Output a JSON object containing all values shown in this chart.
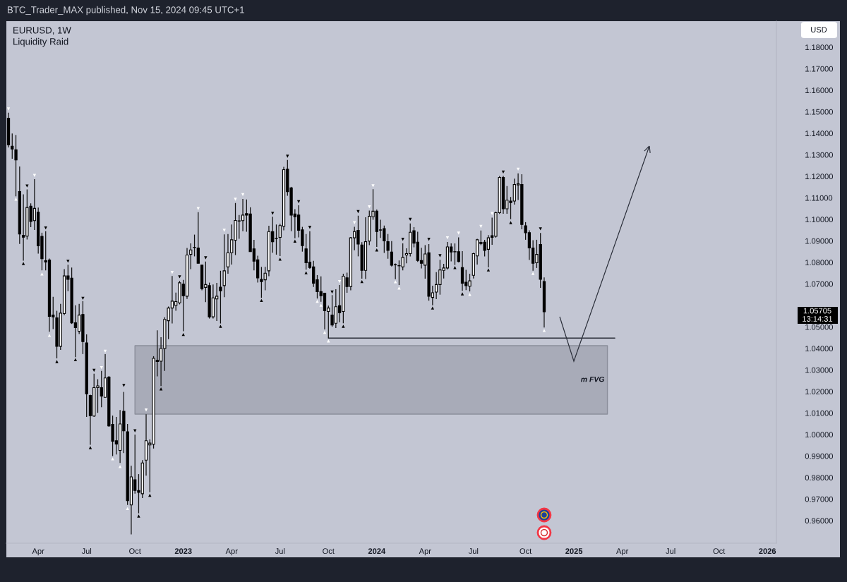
{
  "chart_data": {
    "type": "candlestick",
    "title": "EURUSD, 1W",
    "subtitle": "Liquidity Raid",
    "ylabel": "USD",
    "x": [
      "2022-02-07",
      "2022-02-14",
      "2022-02-21",
      "2022-02-28",
      "2022-03-07",
      "2022-03-14",
      "2022-03-21",
      "2022-03-28",
      "2022-04-04",
      "2022-04-11",
      "2022-04-18",
      "2022-04-25",
      "2022-05-02",
      "2022-05-09",
      "2022-05-16",
      "2022-05-23",
      "2022-05-30",
      "2022-06-06",
      "2022-06-13",
      "2022-06-20",
      "2022-06-27",
      "2022-07-04",
      "2022-07-11",
      "2022-07-18",
      "2022-07-25",
      "2022-08-01",
      "2022-08-08",
      "2022-08-15",
      "2022-08-22",
      "2022-08-29",
      "2022-09-05",
      "2022-09-12",
      "2022-09-19",
      "2022-09-26",
      "2022-10-03",
      "2022-10-10",
      "2022-10-17",
      "2022-10-24",
      "2022-10-31",
      "2022-11-07",
      "2022-11-14",
      "2022-11-21",
      "2022-11-28",
      "2022-12-05",
      "2022-12-12",
      "2022-12-19",
      "2022-12-26",
      "2023-01-02",
      "2023-01-09",
      "2023-01-16",
      "2023-01-23",
      "2023-01-30",
      "2023-02-06",
      "2023-02-13",
      "2023-02-20",
      "2023-02-27",
      "2023-03-06",
      "2023-03-13",
      "2023-03-20",
      "2023-03-27",
      "2023-04-03",
      "2023-04-10",
      "2023-04-17",
      "2023-04-24",
      "2023-05-01",
      "2023-05-08",
      "2023-05-15",
      "2023-05-22",
      "2023-05-29",
      "2023-06-05",
      "2023-06-12",
      "2023-06-19",
      "2023-06-26",
      "2023-07-03",
      "2023-07-10",
      "2023-07-17",
      "2023-07-24",
      "2023-07-31",
      "2023-08-07",
      "2023-08-14",
      "2023-08-21",
      "2023-08-28",
      "2023-09-04",
      "2023-09-11",
      "2023-09-18",
      "2023-09-25",
      "2023-10-02",
      "2023-10-09",
      "2023-10-16",
      "2023-10-23",
      "2023-10-30",
      "2023-11-06",
      "2023-11-13",
      "2023-11-20",
      "2023-11-27",
      "2023-12-04",
      "2023-12-11",
      "2023-12-18",
      "2023-12-25",
      "2024-01-01",
      "2024-01-08",
      "2024-01-15",
      "2024-01-22",
      "2024-01-29",
      "2024-02-05",
      "2024-02-12",
      "2024-02-19",
      "2024-02-26",
      "2024-03-04",
      "2024-03-11",
      "2024-03-18",
      "2024-03-25",
      "2024-04-01",
      "2024-04-08",
      "2024-04-15",
      "2024-04-22",
      "2024-04-29",
      "2024-05-06",
      "2024-05-13",
      "2024-05-20",
      "2024-05-27",
      "2024-06-03",
      "2024-06-10",
      "2024-06-17",
      "2024-06-24",
      "2024-07-01",
      "2024-07-08",
      "2024-07-15",
      "2024-07-22",
      "2024-07-29",
      "2024-08-05",
      "2024-08-12",
      "2024-08-19",
      "2024-08-26",
      "2024-09-02",
      "2024-09-09",
      "2024-09-16",
      "2024-09-23",
      "2024-09-30",
      "2024-10-07",
      "2024-10-14",
      "2024-10-21",
      "2024-10-28",
      "2024-11-04",
      "2024-11-11"
    ],
    "ohlc": [
      [
        1.147,
        1.1496,
        1.1334,
        1.1347
      ],
      [
        1.134,
        1.1399,
        1.1282,
        1.1327
      ],
      [
        1.1323,
        1.1392,
        1.1107,
        1.1276
      ],
      [
        1.1129,
        1.1246,
        1.0886,
        1.0932
      ],
      [
        1.0926,
        1.1116,
        1.0808,
        1.0917
      ],
      [
        1.0922,
        1.1139,
        1.0906,
        1.1055
      ],
      [
        1.1061,
        1.1074,
        1.0964,
        1.099
      ],
      [
        1.0994,
        1.1187,
        1.0951,
        1.1051
      ],
      [
        1.1033,
        1.1055,
        1.0841,
        1.0877
      ],
      [
        1.0921,
        1.0938,
        1.0763,
        1.0817
      ],
      [
        1.0808,
        1.0945,
        1.0763,
        1.0802
      ],
      [
        1.0811,
        1.0818,
        1.0478,
        1.0549
      ],
      [
        1.0555,
        1.064,
        1.049,
        1.0547
      ],
      [
        1.0542,
        1.0575,
        1.0354,
        1.041
      ],
      [
        1.041,
        1.0607,
        1.0393,
        1.0564
      ],
      [
        1.0562,
        1.0769,
        1.0555,
        1.0737
      ],
      [
        1.0737,
        1.0789,
        1.0666,
        1.0721
      ],
      [
        1.0727,
        1.0776,
        1.0514,
        1.0519
      ],
      [
        1.0519,
        1.0601,
        1.036,
        1.0497
      ],
      [
        1.048,
        1.0607,
        1.0467,
        1.0555
      ],
      [
        1.0558,
        1.062,
        1.0374,
        1.0432
      ],
      [
        1.0426,
        1.0465,
        1.0082,
        1.0189
      ],
      [
        1.0182,
        1.0185,
        0.9952,
        1.0088
      ],
      [
        1.0086,
        1.0283,
        1.0082,
        1.0218
      ],
      [
        1.0218,
        1.0257,
        1.0101,
        1.0226
      ],
      [
        1.0218,
        1.0296,
        1.0127,
        1.0179
      ],
      [
        1.0173,
        1.0374,
        1.0173,
        1.0263
      ],
      [
        1.0267,
        1.0272,
        1.0036,
        1.004
      ],
      [
        1.0047,
        1.0088,
        0.99,
        0.9969
      ],
      [
        0.9971,
        1.0082,
        0.9907,
        0.9956
      ],
      [
        0.9926,
        1.0114,
        0.9868,
        1.0049
      ],
      [
        1.0108,
        1.0198,
        0.9914,
        1.0017
      ],
      [
        1.0013,
        1.0049,
        0.9673,
        0.9693
      ],
      [
        0.9673,
        0.9855,
        0.9536,
        0.9803
      ],
      [
        0.979,
        1.0,
        0.9725,
        0.974
      ],
      [
        0.974,
        0.9816,
        0.9634,
        0.9731
      ],
      [
        0.9725,
        0.9881,
        0.9705,
        0.9868
      ],
      [
        0.9881,
        1.0094,
        0.9809,
        0.9971
      ],
      [
        0.9952,
        0.9978,
        0.9732,
        0.996
      ],
      [
        0.9955,
        1.0364,
        0.9935,
        1.0354
      ],
      [
        1.0345,
        1.0484,
        1.027,
        1.0339
      ],
      [
        1.0341,
        1.0452,
        1.0225,
        1.04
      ],
      [
        1.04,
        1.0545,
        1.0296,
        1.0535
      ],
      [
        1.0529,
        1.0595,
        1.0443,
        1.0588
      ],
      [
        1.0588,
        1.0737,
        1.0516,
        1.062
      ],
      [
        1.06,
        1.066,
        1.0575,
        1.0618
      ],
      [
        1.0612,
        1.0714,
        1.0605,
        1.0705
      ],
      [
        1.0699,
        1.0719,
        1.048,
        1.0645
      ],
      [
        1.0643,
        1.0867,
        1.063,
        1.0834
      ],
      [
        1.0837,
        1.0888,
        1.0769,
        1.0858
      ],
      [
        1.087,
        1.0929,
        1.0828,
        1.0869
      ],
      [
        1.0867,
        1.1033,
        1.0796,
        1.0796
      ],
      [
        1.0787,
        1.079,
        1.067,
        1.0678
      ],
      [
        1.0684,
        1.0804,
        1.0615,
        1.0697
      ],
      [
        1.0692,
        1.0706,
        1.0539,
        1.0547
      ],
      [
        1.0547,
        1.0697,
        1.0539,
        1.0635
      ],
      [
        1.063,
        1.0705,
        1.0528,
        1.0643
      ],
      [
        1.0685,
        1.0761,
        1.0516,
        1.0668
      ],
      [
        1.0692,
        1.093,
        1.0638,
        1.0761
      ],
      [
        1.0779,
        1.0932,
        1.0747,
        1.0845
      ],
      [
        1.0845,
        1.0976,
        1.079,
        1.0905
      ],
      [
        1.0903,
        1.1076,
        1.0834,
        1.0995
      ],
      [
        1.0993,
        1.102,
        1.091,
        1.0992
      ],
      [
        1.0994,
        1.1095,
        1.0945,
        1.102
      ],
      [
        1.1027,
        1.1092,
        1.0942,
        1.102
      ],
      [
        1.1025,
        1.1056,
        1.085,
        1.085
      ],
      [
        1.0863,
        1.0905,
        1.0763,
        1.0806
      ],
      [
        1.0812,
        1.0831,
        1.0706,
        1.0728
      ],
      [
        1.0721,
        1.0779,
        1.0635,
        1.0711
      ],
      [
        1.0719,
        1.0779,
        1.067,
        1.075
      ],
      [
        1.0761,
        1.097,
        1.0736,
        1.0943
      ],
      [
        1.0943,
        1.1012,
        1.0845,
        1.0896
      ],
      [
        1.0911,
        1.0976,
        1.0836,
        1.091
      ],
      [
        1.0916,
        1.0979,
        1.0829,
        1.0971
      ],
      [
        1.0968,
        1.1244,
        1.0949,
        1.1231
      ],
      [
        1.1233,
        1.1276,
        1.111,
        1.1129
      ],
      [
        1.1146,
        1.1151,
        1.0945,
        1.102
      ],
      [
        1.1025,
        1.1047,
        1.0912,
        1.1012
      ],
      [
        1.102,
        1.1065,
        1.0916,
        1.0949
      ],
      [
        1.0951,
        1.0965,
        1.085,
        1.0878
      ],
      [
        1.0863,
        1.0932,
        1.0766,
        1.0798
      ],
      [
        1.0801,
        1.0945,
        1.077,
        1.0776
      ],
      [
        1.0779,
        1.0807,
        1.0686,
        1.0703
      ],
      [
        1.0719,
        1.0741,
        1.0632,
        1.0664
      ],
      [
        1.0664,
        1.0735,
        1.0617,
        1.0645
      ],
      [
        1.0657,
        1.0659,
        1.0488,
        1.0575
      ],
      [
        1.0572,
        1.0599,
        1.0448,
        1.0588
      ],
      [
        1.0555,
        1.0648,
        1.0501,
        1.0509
      ],
      [
        1.0517,
        1.0675,
        1.0495,
        1.0594
      ],
      [
        1.0599,
        1.0695,
        1.0522,
        1.0566
      ],
      [
        1.0572,
        1.0747,
        1.0517,
        1.0736
      ],
      [
        1.0728,
        1.0752,
        1.0659,
        1.0688
      ],
      [
        1.0688,
        1.0918,
        1.067,
        1.0914
      ],
      [
        1.0914,
        1.0965,
        1.0856,
        1.0943
      ],
      [
        1.0949,
        1.1017,
        1.0828,
        1.0885
      ],
      [
        1.0881,
        1.0894,
        1.0724,
        1.0763
      ],
      [
        1.0763,
        1.101,
        1.0723,
        1.0896
      ],
      [
        1.0899,
        1.1041,
        1.088,
        1.1014
      ],
      [
        1.1012,
        1.114,
        1.0998,
        1.1038
      ],
      [
        1.1038,
        1.1046,
        1.0872,
        1.0943
      ],
      [
        1.0951,
        1.0998,
        1.0914,
        1.095
      ],
      [
        1.0957,
        1.0971,
        1.0844,
        1.09
      ],
      [
        1.0896,
        1.0932,
        1.0817,
        1.0856
      ],
      [
        1.0848,
        1.0899,
        1.0781,
        1.0787
      ],
      [
        1.079,
        1.0795,
        1.0722,
        1.0789
      ],
      [
        1.0784,
        1.0809,
        1.0695,
        1.0785
      ],
      [
        1.0779,
        1.0888,
        1.0763,
        1.0823
      ],
      [
        1.0834,
        1.0865,
        1.0796,
        1.0841
      ],
      [
        1.0841,
        1.0981,
        1.0828,
        1.094
      ],
      [
        1.0947,
        1.0964,
        1.087,
        1.0889
      ],
      [
        1.0894,
        1.0942,
        1.0802,
        1.0809
      ],
      [
        1.0809,
        1.0868,
        1.0772,
        1.0796
      ],
      [
        1.0787,
        1.088,
        1.0724,
        1.0839
      ],
      [
        1.0845,
        1.0885,
        1.0622,
        1.0643
      ],
      [
        1.0637,
        1.0692,
        1.0601,
        1.0659
      ],
      [
        1.0662,
        1.0755,
        1.0629,
        1.0697
      ],
      [
        1.0697,
        1.0812,
        1.065,
        1.0765
      ],
      [
        1.0763,
        1.0793,
        1.0725,
        1.0774
      ],
      [
        1.0774,
        1.0895,
        1.0767,
        1.0872
      ],
      [
        1.0872,
        1.0888,
        1.0805,
        1.0848
      ],
      [
        1.0849,
        1.0888,
        1.0788,
        1.085
      ],
      [
        1.085,
        1.0916,
        1.08,
        1.0804
      ],
      [
        1.0776,
        1.0852,
        1.0668,
        1.0703
      ],
      [
        1.0708,
        1.0765,
        1.0671,
        1.0692
      ],
      [
        1.0689,
        1.0747,
        1.0665,
        1.0714
      ],
      [
        1.074,
        1.0845,
        1.0725,
        1.0841
      ],
      [
        1.083,
        1.091,
        1.079,
        1.0905
      ],
      [
        1.0893,
        1.0948,
        1.088,
        1.0888
      ],
      [
        1.0894,
        1.0905,
        1.0828,
        1.0856
      ],
      [
        1.0861,
        1.0927,
        1.0777,
        1.0914
      ],
      [
        1.0924,
        1.1008,
        1.0882,
        1.0916
      ],
      [
        1.0921,
        1.1036,
        1.0915,
        1.1031
      ],
      [
        1.1031,
        1.1201,
        1.1025,
        1.1195
      ],
      [
        1.1195,
        1.1202,
        1.1026,
        1.1049
      ],
      [
        1.1049,
        1.1155,
        1.1026,
        1.1089
      ],
      [
        1.1085,
        1.1104,
        1.1001,
        1.1078
      ],
      [
        1.1085,
        1.1189,
        1.1069,
        1.1162
      ],
      [
        1.116,
        1.1214,
        1.109,
        1.1165
      ],
      [
        1.1162,
        1.121,
        1.0954,
        1.0976
      ],
      [
        1.097,
        1.0987,
        1.0905,
        1.0938
      ],
      [
        1.0938,
        1.0949,
        1.0811,
        1.0867
      ],
      [
        1.0867,
        1.0903,
        1.0761,
        1.0796
      ],
      [
        1.0798,
        1.0905,
        1.0774,
        1.0837
      ],
      [
        1.0883,
        1.0937,
        1.0682,
        1.0721
      ],
      [
        1.0711,
        1.073,
        1.0497,
        1.05705
      ]
    ],
    "series": [
      {
        "type": "line",
        "x": [
          "2022-10-03",
          "2025-03-10"
        ],
        "values": [
          null,
          null
        ],
        "lower": [
          1.0095,
          1.0095
        ],
        "upper": [
          1.0413,
          1.0413
        ],
        "color": "#a8abb8"
      },
      {
        "type": "line",
        "x": [
          "2023-10-02",
          "2025-03-24"
        ],
        "values": [
          1.0448,
          1.0448
        ],
        "color": "#2a2e39"
      },
      {
        "type": "scatter",
        "marker": "triangle",
        "color": "#ffffff",
        "x": [
          "2022-02-07",
          "2022-02-21",
          "2022-03-28",
          "2022-04-11",
          "2022-04-25",
          "2022-08-01",
          "2022-08-08",
          "2022-08-22",
          "2022-09-05",
          "2022-09-19",
          "2022-10-24",
          "2022-12-12",
          "2023-01-30",
          "2023-03-20",
          "2023-04-10",
          "2023-04-24",
          "2023-09-11",
          "2023-09-18",
          "2023-09-25",
          "2023-10-02",
          "2023-10-23",
          "2023-11-20",
          "2023-12-18",
          "2023-12-25",
          "2024-02-05",
          "2024-02-12",
          "2024-05-13",
          "2024-06-03",
          "2024-06-24",
          "2024-07-15",
          "2024-08-05",
          "2024-09-23",
          "2024-10-21",
          "2024-11-11"
        ],
        "values": [
          1.1513,
          1.1094,
          1.1204,
          1.0746,
          1.0461,
          1.0311,
          1.0387,
          0.9887,
          0.9851,
          0.9656,
          1.0114,
          1.0753,
          1.105,
          1.0949,
          1.1093,
          1.1115,
          1.0619,
          1.0601,
          1.0475,
          1.0435,
          1.0711,
          1.0984,
          1.1058,
          1.1156,
          1.071,
          1.0681,
          1.0914,
          1.0936,
          1.0651,
          1.0967,
          1.1027,
          1.1233,
          1.0749,
          1.0484
        ]
      },
      {
        "type": "scatter",
        "marker": "triangle",
        "color": "#000000",
        "x": [
          "2022-03-07",
          "2022-03-14",
          "2022-04-18",
          "2022-05-09",
          "2022-05-30",
          "2022-06-13",
          "2022-06-27",
          "2022-07-11",
          "2022-07-18",
          "2022-09-12",
          "2022-10-03",
          "2022-10-10",
          "2022-10-31",
          "2022-11-21",
          "2022-12-26",
          "2023-01-02",
          "2023-02-13",
          "2023-03-13",
          "2023-05-29",
          "2023-06-19",
          "2023-07-03",
          "2023-07-17",
          "2023-07-31",
          "2023-08-07",
          "2023-08-21",
          "2023-08-28",
          "2023-10-09",
          "2023-10-30",
          "2023-11-27",
          "2023-12-04",
          "2024-01-01",
          "2024-02-19",
          "2024-03-04",
          "2024-04-08",
          "2024-04-15",
          "2024-04-29",
          "2024-05-27",
          "2024-06-10",
          "2024-07-29",
          "2024-08-26",
          "2024-09-09",
          "2024-11-04"
        ],
        "values": [
          1.0795,
          1.1155,
          1.096,
          1.0339,
          1.0805,
          1.0348,
          1.0633,
          0.9939,
          1.0298,
          1.0228,
          1.0017,
          0.9621,
          0.9718,
          1.0212,
          1.0733,
          1.0465,
          1.0821,
          1.0503,
          1.0623,
          1.1028,
          1.0815,
          1.1293,
          1.0899,
          1.1082,
          1.0752,
          1.0963,
          1.0662,
          1.0503,
          1.1036,
          1.0711,
          1.0858,
          1.0907,
          1.1,
          1.0907,
          1.0588,
          1.0831,
          1.0776,
          1.0654,
          1.0765,
          1.122,
          1.0985,
          1.0956
        ]
      }
    ],
    "annotations": [
      "BTC_Trader_MAX published, Nov 15, 2024 09:45 UTC+1",
      "m FVG",
      "1.05705",
      "13:14:31"
    ],
    "xlim": [
      "2022-02-03",
      "2026-01-22"
    ],
    "xticks": [
      {
        "value": "2022-04-04",
        "label": "Apr"
      },
      {
        "value": "2022-07-04",
        "label": "Jul"
      },
      {
        "value": "2022-10-03",
        "label": "Oct"
      },
      {
        "value": "2023-01-02",
        "label": "2023"
      },
      {
        "value": "2023-04-03",
        "label": "Apr"
      },
      {
        "value": "2023-07-03",
        "label": "Jul"
      },
      {
        "value": "2023-10-02",
        "label": "Oct"
      },
      {
        "value": "2024-01-01",
        "label": "2024"
      },
      {
        "value": "2024-04-01",
        "label": "Apr"
      },
      {
        "value": "2024-07-01",
        "label": "Jul"
      },
      {
        "value": "2024-10-07",
        "label": "Oct"
      },
      {
        "value": "2025-01-06",
        "label": "2025"
      },
      {
        "value": "2025-04-07",
        "label": "Apr"
      },
      {
        "value": "2025-07-07",
        "label": "Jul"
      },
      {
        "value": "2025-10-06",
        "label": "Oct"
      },
      {
        "value": "2026-01-05",
        "label": "2026"
      }
    ],
    "ylim": [
      0.9495,
      1.1921
    ],
    "yticks": [
      {
        "value": 0.96,
        "label": "0.96000"
      },
      {
        "value": 0.97,
        "label": "0.97000"
      },
      {
        "value": 0.98,
        "label": "0.98000"
      },
      {
        "value": 0.99,
        "label": "0.99000"
      },
      {
        "value": 1.0,
        "label": "1.00000"
      },
      {
        "value": 1.01,
        "label": "1.01000"
      },
      {
        "value": 1.02,
        "label": "1.02000"
      },
      {
        "value": 1.03,
        "label": "1.03000"
      },
      {
        "value": 1.04,
        "label": "1.04000"
      },
      {
        "value": 1.05,
        "label": "1.05000"
      },
      {
        "value": 1.07,
        "label": "1.07000"
      },
      {
        "value": 1.08,
        "label": "1.08000"
      },
      {
        "value": 1.09,
        "label": "1.09000"
      },
      {
        "value": 1.1,
        "label": "1.10000"
      },
      {
        "value": 1.11,
        "label": "1.11000"
      },
      {
        "value": 1.12,
        "label": "1.12000"
      },
      {
        "value": 1.13,
        "label": "1.13000"
      },
      {
        "value": 1.14,
        "label": "1.14000"
      },
      {
        "value": 1.15,
        "label": "1.15000"
      },
      {
        "value": 1.16,
        "label": "1.16000"
      },
      {
        "value": 1.17,
        "label": "1.17000"
      },
      {
        "value": 1.18,
        "label": "1.18000"
      }
    ]
  }
}
